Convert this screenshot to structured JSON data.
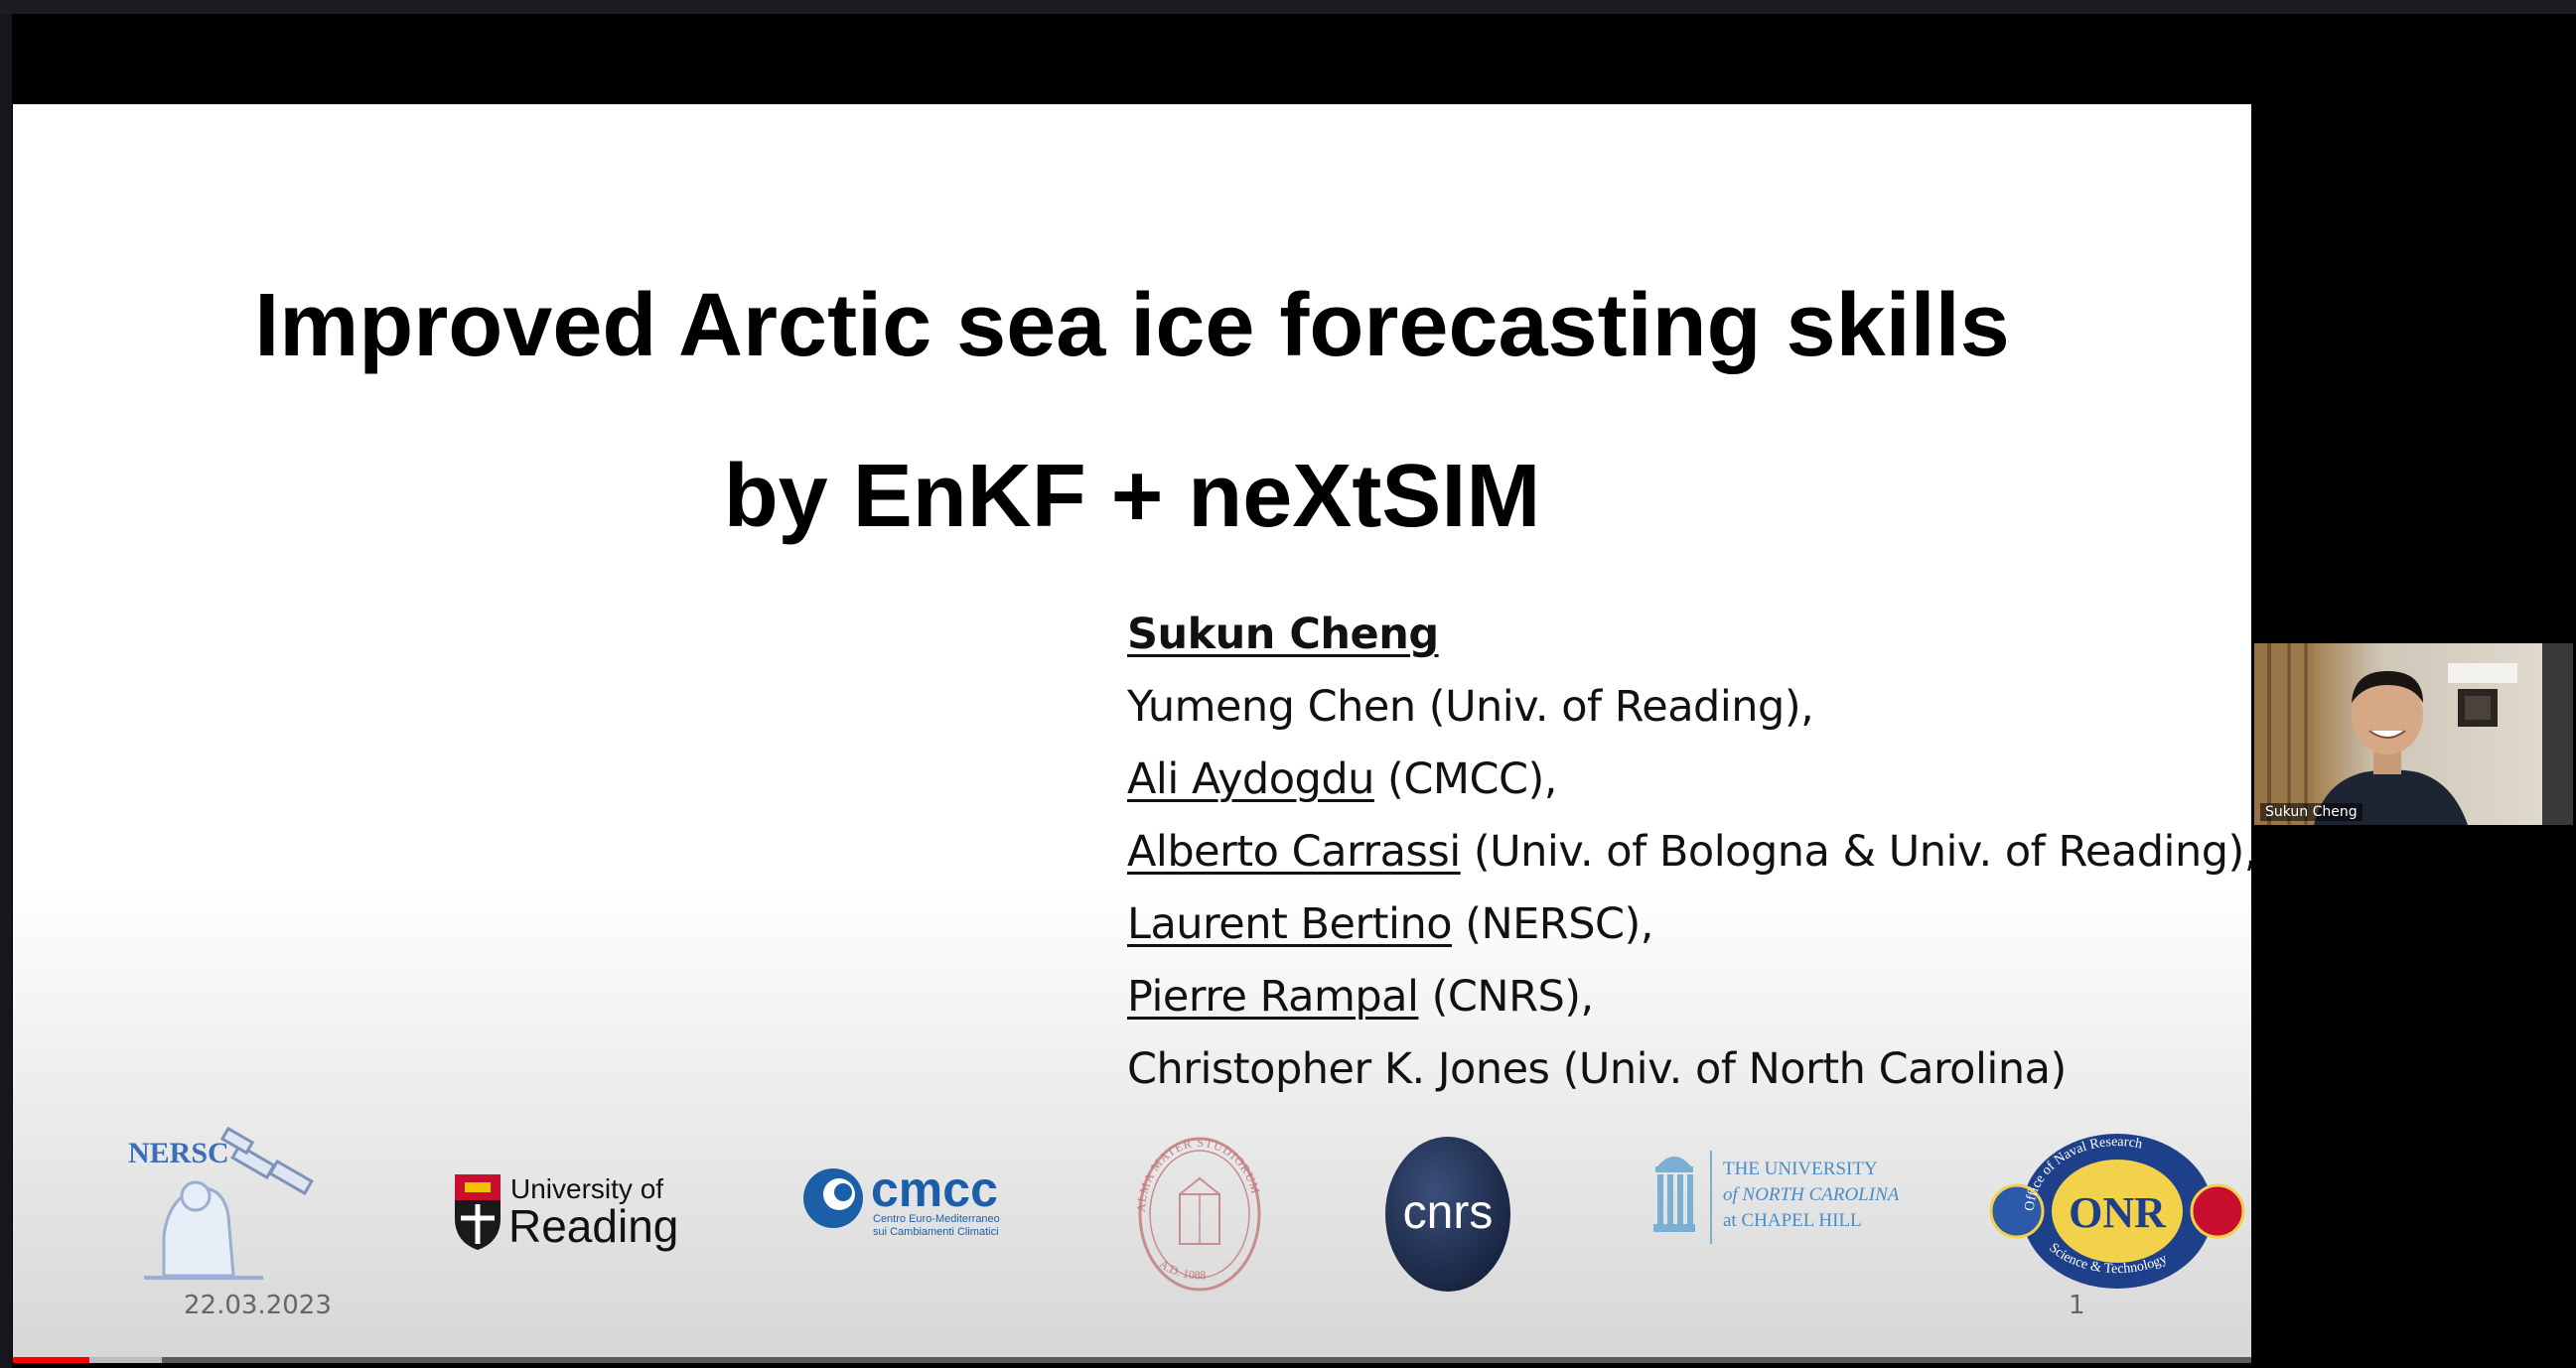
{
  "slide": {
    "title_line1": "Improved Arctic sea ice forecasting skills",
    "title_line2": "by EnKF + neXtSIM",
    "authors": [
      {
        "name": "Sukun Cheng",
        "affil": ""
      },
      {
        "name": "",
        "affil": "Yumeng Chen (Univ. of Reading),"
      },
      {
        "name": "Ali Aydogdu",
        "affil": " (CMCC),"
      },
      {
        "name": "Alberto Carrassi",
        "affil": " (Univ. of Bologna & Univ. of Reading),"
      },
      {
        "name": "Laurent Bertino",
        "affil": " (NERSC),"
      },
      {
        "name": "Pierre Rampal",
        "affil": " (CNRS),"
      },
      {
        "name": "",
        "affil": "Christopher K. Jones (Univ. of North Carolina)"
      }
    ],
    "date": "22.03.2023",
    "page_number": "1",
    "logos": {
      "nersc": "NERSC",
      "reading_line1": "University of",
      "reading_line2": "Reading",
      "cmcc": "cmcc",
      "cmcc_sub1": "Centro Euro-Mediterraneo",
      "cmcc_sub2": "sui Cambiamenti Climatici",
      "unc_line1": "THE UNIVERSITY",
      "unc_line2": "of NORTH CAROLINA",
      "unc_line3": "at CHAPEL HILL",
      "bologna_motto": "ALMA MATER STUDIORUM",
      "bologna_year": "A.D. 1088",
      "onr": "ONR",
      "onr_top": "Office of Naval Research",
      "onr_bottom": "Science & Technology"
    }
  },
  "webcam": {
    "participant_name": "Sukun Cheng"
  },
  "video": {
    "progress": 0.034
  },
  "colors": {
    "progress": "#ff0000",
    "cnrs": "#1d2d4f",
    "cmcc": "#1a5fa8"
  }
}
